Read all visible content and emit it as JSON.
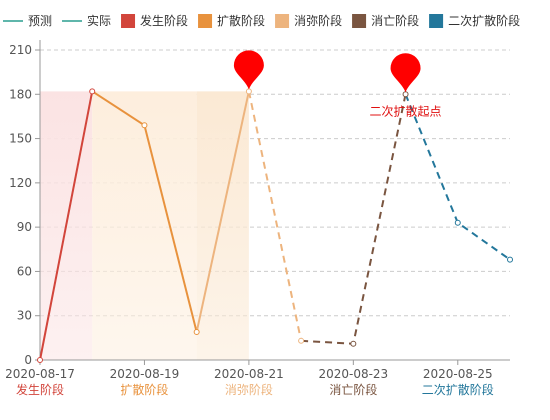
{
  "chart_data": {
    "type": "line",
    "title": "",
    "xlabel": "",
    "ylabel": "",
    "ylim": [
      0,
      210
    ],
    "yticks": [
      0,
      30,
      60,
      90,
      120,
      150,
      180,
      210
    ],
    "xlim": [
      "2020-08-17",
      "2020-08-26"
    ],
    "xticks": [
      "2020-08-17",
      "2020-08-19",
      "2020-08-21",
      "2020-08-23",
      "2020-08-25"
    ],
    "grid": true,
    "legend_position": "top",
    "legend": [
      {
        "label": "预测",
        "kind": "line",
        "color": "#2a9d8f"
      },
      {
        "label": "实际",
        "kind": "line",
        "color": "#2a9d8f"
      },
      {
        "label": "发生阶段",
        "kind": "box",
        "color": "#d2453b"
      },
      {
        "label": "扩散阶段",
        "kind": "box",
        "color": "#e8923d"
      },
      {
        "label": "消弥阶段",
        "kind": "box",
        "color": "#edb47e"
      },
      {
        "label": "消亡阶段",
        "kind": "box",
        "color": "#7a5540"
      },
      {
        "label": "二次扩散阶段",
        "kind": "box",
        "color": "#23779b"
      }
    ],
    "phases": [
      {
        "name": "发生阶段",
        "start": "2020-08-17",
        "end": "2020-08-18",
        "color": "#d2453b",
        "style": "solid",
        "shaded": true,
        "shade_color": "#fbe3e3"
      },
      {
        "name": "扩散阶段",
        "start": "2020-08-18",
        "end": "2020-08-20",
        "color": "#e8923d",
        "style": "solid",
        "shaded": true,
        "shade_color": "#fdeedd"
      },
      {
        "name": "消弥阶段",
        "start": "2020-08-20",
        "end": "2020-08-21",
        "color": "#edb47e",
        "style": "solid",
        "shaded": true,
        "shade_color": "#fbe9d4"
      },
      {
        "name": "消弥阶段",
        "start": "2020-08-21",
        "end": "2020-08-22",
        "color": "#edb47e",
        "style": "dashed",
        "shaded": false
      },
      {
        "name": "消亡阶段",
        "start": "2020-08-22",
        "end": "2020-08-24",
        "color": "#7a5540",
        "style": "dashed",
        "shaded": false
      },
      {
        "name": "二次扩散阶段",
        "start": "2020-08-24",
        "end": "2020-08-26",
        "color": "#23779b",
        "style": "dashed",
        "shaded": false
      }
    ],
    "points": [
      {
        "x": "2020-08-17",
        "y": 0
      },
      {
        "x": "2020-08-18",
        "y": 182
      },
      {
        "x": "2020-08-19",
        "y": 159
      },
      {
        "x": "2020-08-20",
        "y": 19
      },
      {
        "x": "2020-08-21",
        "y": 182
      },
      {
        "x": "2020-08-22",
        "y": 13
      },
      {
        "x": "2020-08-23",
        "y": 11
      },
      {
        "x": "2020-08-24",
        "y": 180
      },
      {
        "x": "2020-08-25",
        "y": 93
      },
      {
        "x": "2020-08-26",
        "y": 68
      }
    ],
    "phase_axis_labels": [
      {
        "x": "2020-08-17",
        "text": "发生阶段",
        "color": "#d2453b"
      },
      {
        "x": "2020-08-19",
        "text": "扩散阶段",
        "color": "#e8923d"
      },
      {
        "x": "2020-08-21",
        "text": "消弥阶段",
        "color": "#edb47e"
      },
      {
        "x": "2020-08-23",
        "text": "消亡阶段",
        "color": "#7a5540"
      },
      {
        "x": "2020-08-25",
        "text": "二次扩散阶段",
        "color": "#23779b"
      }
    ],
    "markers": [
      {
        "x": "2020-08-21",
        "y": 182,
        "label": "",
        "color": "#ff0000"
      },
      {
        "x": "2020-08-24",
        "y": 180,
        "label": "二次扩散起点",
        "color": "#ff0000"
      }
    ]
  }
}
